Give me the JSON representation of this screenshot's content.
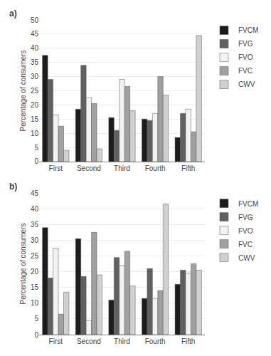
{
  "chart_data": [
    {
      "type": "bar",
      "title": "a)",
      "categories": [
        "First",
        "Second",
        "Third",
        "Fourth",
        "Fifth"
      ],
      "series": [
        {
          "name": "FVCM",
          "color": "#1c1c1c",
          "values": [
            37.5,
            18.5,
            15.5,
            15.0,
            8.5
          ]
        },
        {
          "name": "FVG",
          "color": "#606060",
          "values": [
            29.0,
            34.0,
            11.0,
            14.5,
            17.0
          ]
        },
        {
          "name": "FVO",
          "color": "#f2f2f2",
          "values": [
            16.5,
            22.5,
            29.0,
            17.0,
            18.5
          ]
        },
        {
          "name": "FVC",
          "color": "#a0a0a0",
          "values": [
            12.5,
            20.5,
            26.5,
            30.0,
            10.5
          ]
        },
        {
          "name": "CWV",
          "color": "#d0d0d0",
          "values": [
            4.0,
            4.5,
            18.0,
            23.5,
            44.5
          ]
        }
      ],
      "ylim": [
        0,
        50
      ],
      "yticks": [
        0,
        5,
        10,
        15,
        20,
        25,
        30,
        35,
        40,
        45,
        50
      ],
      "ylabel": "Percentage of consumers",
      "grid": true,
      "legend": "right"
    },
    {
      "type": "bar",
      "title": "b)",
      "categories": [
        "First",
        "Second",
        "Third",
        "Fourth",
        "Fifth"
      ],
      "series": [
        {
          "name": "FVCM",
          "color": "#1c1c1c",
          "values": [
            34.0,
            30.5,
            11.0,
            11.5,
            16.0
          ]
        },
        {
          "name": "FVG",
          "color": "#606060",
          "values": [
            18.0,
            18.5,
            24.5,
            21.0,
            20.5
          ]
        },
        {
          "name": "FVO",
          "color": "#f2f2f2",
          "values": [
            27.5,
            4.5,
            22.0,
            11.5,
            19.5
          ]
        },
        {
          "name": "FVC",
          "color": "#a0a0a0",
          "values": [
            6.5,
            32.5,
            26.5,
            14.0,
            22.5
          ]
        },
        {
          "name": "CWV",
          "color": "#d0d0d0",
          "values": [
            13.5,
            19.0,
            15.5,
            41.5,
            20.5
          ]
        }
      ],
      "ylim": [
        0,
        45
      ],
      "yticks": [
        0,
        5,
        10,
        15,
        20,
        25,
        30,
        35,
        40,
        45
      ],
      "ylabel": "Percentage of consumers",
      "grid": true,
      "legend": "right"
    }
  ]
}
